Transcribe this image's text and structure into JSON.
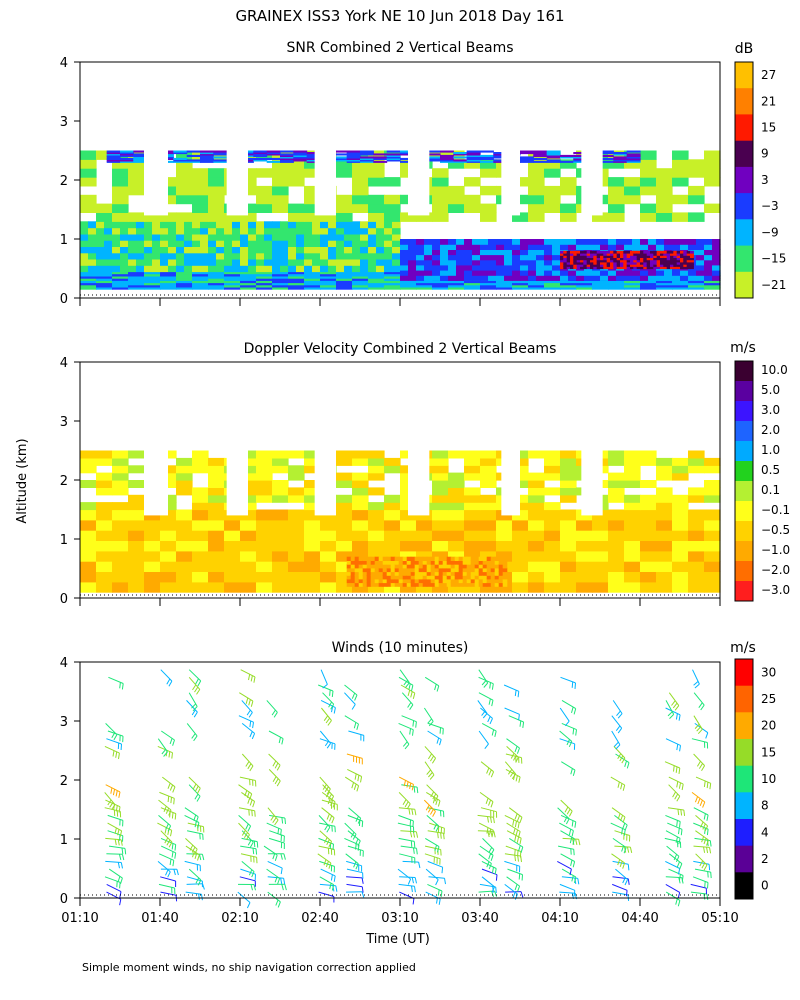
{
  "figure": {
    "title": "GRAINEX ISS3 York NE  10 Jun 2018 Day 161",
    "ylabel": "Altitude (km)",
    "xlabel": "Time (UT)",
    "footnote": "Simple moment winds, no ship navigation correction applied",
    "xticks": [
      "01:10",
      "01:40",
      "02:10",
      "02:40",
      "03:10",
      "03:40",
      "04:10",
      "04:40",
      "05:10"
    ],
    "yticks": [
      "0",
      "1",
      "2",
      "3",
      "4"
    ],
    "xlim_minutes": [
      70,
      310
    ],
    "ylim_km": [
      0,
      4
    ]
  },
  "chart_data": [
    {
      "type": "heatmap",
      "title": "SNR Combined 2 Vertical Beams",
      "units": "dB",
      "xlim": [
        "01:10",
        "05:10"
      ],
      "ylim": [
        0,
        4
      ],
      "colorbar_labels": [
        "27",
        "21",
        "15",
        "9",
        "3",
        "−3",
        "−9",
        "−15",
        "−21"
      ],
      "colorbar_colors": [
        "#ffc000",
        "#ff8000",
        "#ff1a00",
        "#4a0050",
        "#7000c0",
        "#1a3cff",
        "#00b4ff",
        "#33e66e",
        "#c8f028"
      ],
      "bands": [
        {
          "x0": 70,
          "x1": 310,
          "y0": 0.15,
          "y1": 0.45,
          "level": -9
        },
        {
          "x0": 70,
          "x1": 190,
          "y0": 0.45,
          "y1": 1.3,
          "level": -15
        },
        {
          "x0": 190,
          "x1": 310,
          "y0": 0.3,
          "y1": 1.0,
          "level": -3
        },
        {
          "x0": 250,
          "x1": 300,
          "y0": 0.5,
          "y1": 0.8,
          "level": 9
        },
        {
          "x0": 70,
          "x1": 310,
          "y0": 1.3,
          "y1": 2.5,
          "level": -21
        },
        {
          "x0": 80,
          "x1": 280,
          "y0": 2.3,
          "y1": 2.5,
          "level": -3
        }
      ]
    },
    {
      "type": "heatmap",
      "title": "Doppler Velocity Combined 2 Vertical Beams",
      "units": "m/s",
      "xlim": [
        "01:10",
        "05:10"
      ],
      "ylim": [
        0,
        4
      ],
      "colorbar_labels": [
        "10.0",
        "5.0",
        "3.0",
        "2.0",
        "1.0",
        "0.5",
        "0.1",
        "−0.1",
        "−0.5",
        "−1.0",
        "−2.0",
        "−3.0"
      ],
      "colorbar_colors": [
        "#3a0030",
        "#5a00a0",
        "#3c14ff",
        "#1e64ff",
        "#00aaff",
        "#22d21e",
        "#b4f032",
        "#ffff1a",
        "#ffd200",
        "#ffaa00",
        "#ff6e00",
        "#ff1e1e"
      ],
      "bands": [
        {
          "x0": 70,
          "x1": 310,
          "y0": 0.1,
          "y1": 1.5,
          "level": -0.5
        },
        {
          "x0": 170,
          "x1": 230,
          "y0": 0.2,
          "y1": 0.7,
          "level": -1.0
        },
        {
          "x0": 70,
          "x1": 310,
          "y0": 1.5,
          "y1": 2.5,
          "level": -0.1
        }
      ]
    },
    {
      "type": "scatter",
      "title": "Winds (10 minutes)",
      "units": "m/s",
      "xlim": [
        "01:10",
        "05:10"
      ],
      "ylim": [
        0,
        4
      ],
      "colorbar_labels": [
        "30",
        "25",
        "20",
        "15",
        "10",
        "8",
        "4",
        "2",
        "0"
      ],
      "colorbar_colors": [
        "#ff0000",
        "#ff6400",
        "#ffaa00",
        "#96dc28",
        "#1ee678",
        "#00b4ff",
        "#1e1eff",
        "#5a0096",
        "#000000"
      ],
      "barb_times": [
        80,
        100,
        110,
        130,
        140,
        160,
        170,
        190,
        200,
        220,
        230,
        250,
        270,
        290,
        300
      ],
      "speed_by_height": [
        {
          "km": 0.3,
          "mps": 8
        },
        {
          "km": 1.0,
          "mps": 12
        },
        {
          "km": 2.0,
          "mps": 15
        },
        {
          "km": 3.0,
          "mps": 10
        }
      ]
    }
  ]
}
